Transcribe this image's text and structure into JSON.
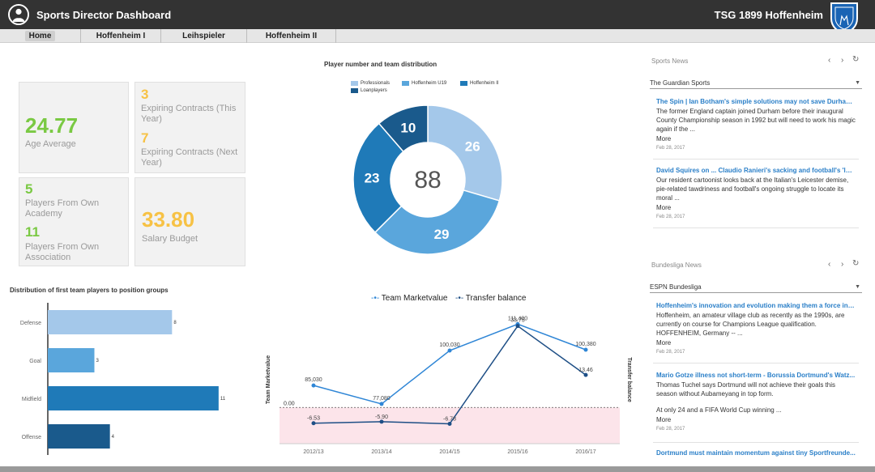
{
  "header": {
    "title": "Sports Director Dashboard",
    "club": "TSG 1899 Hoffenheim"
  },
  "tabs": [
    {
      "label": "Home",
      "active": true
    },
    {
      "label": "Hoffenheim I",
      "active": false
    },
    {
      "label": "Leihspieler",
      "active": false
    },
    {
      "label": "Hoffenheim II",
      "active": false
    }
  ],
  "kpis": {
    "age_average": {
      "value": "24.77",
      "label": "Age Average"
    },
    "expiring_this_year": {
      "value": "3",
      "label": "Expiring Contracts (This Year)"
    },
    "expiring_next_year": {
      "value": "7",
      "label": "Expiring Contracts (Next Year)"
    },
    "own_academy": {
      "value": "5",
      "label": "Players From Own Academy"
    },
    "own_association": {
      "value": "11",
      "label": "Players From Own Association"
    },
    "salary_budget": {
      "value": "33.80",
      "label": "Salary Budget"
    }
  },
  "colors": {
    "green": "#7ac943",
    "yellow": "#f7c245",
    "professionals": "#a4c8ea",
    "hoffenheim_u19": "#5aa6dc",
    "hoffenheim_ii": "#1f7ab8",
    "loanplayers": "#1a5a8c",
    "line_marketvalue": "#2f86d6",
    "line_transfer": "#1e4f86"
  },
  "chart_data": [
    {
      "type": "pie",
      "title": "Player number and team distribution",
      "center_label": "88",
      "categories": [
        "Professionals",
        "Hoffenheim U19",
        "Hoffenheim II",
        "Loanplayers"
      ],
      "values": [
        26,
        29,
        23,
        10
      ],
      "legend": "top"
    },
    {
      "type": "bar",
      "title": "Distribution of first team players to position groups",
      "categories": [
        "Defense",
        "Goal",
        "Midfield",
        "Offense"
      ],
      "values": [
        8,
        3,
        11,
        4
      ],
      "orientation": "horizontal",
      "xlim": [
        0,
        12
      ]
    },
    {
      "type": "line",
      "categories": [
        "2012/13",
        "2013/14",
        "2014/15",
        "2015/16",
        "2016/17"
      ],
      "ylabel_left": "Team Marketvalue",
      "ylabel_right": "Transfer balance",
      "reference_label": "0.00",
      "legend": "top",
      "series": [
        {
          "name": "Team Marketvalue",
          "values": [
            85030,
            77080,
            100030,
            111400,
            100380
          ],
          "labels": [
            "85,030",
            "77,080",
            "100,030",
            "111,400",
            "100,380"
          ],
          "axis": "left"
        },
        {
          "name": "Transfer balance",
          "values": [
            -6.53,
            -5.9,
            -6.78,
            33.75,
            13.46
          ],
          "labels": [
            "-6.53",
            "-5.90",
            "-6.78",
            "33.75",
            "13.46"
          ],
          "axis": "right"
        }
      ],
      "ylim_left": [
        60000,
        115000
      ],
      "ylim_right": [
        -15,
        38
      ]
    }
  ],
  "sports_news": {
    "heading": "Sports News",
    "source": "The Guardian Sports",
    "items": [
      {
        "title": "The Spin | Ian Botham's simple solutions may not save Durham b...",
        "body": "The former England captain joined Durham before their inaugural County Championship season in 1992 but will need to work his magic again if the ...",
        "more": "More",
        "date": "Feb 28, 2017"
      },
      {
        "title": "David Squires on ... Claudio Ranieri's sacking and football's 'lost...",
        "body": "Our resident cartoonist looks back at the Italian's Leicester demise, pie-related tawdriness and football's ongoing struggle to locate its moral ...",
        "more": "More",
        "date": "Feb 28, 2017"
      }
    ]
  },
  "bundesliga_news": {
    "heading": "Bundesliga News",
    "source": "ESPN Bundesliga",
    "items": [
      {
        "title": "Hoffenheim's innovation and evolution making them a force in t...",
        "body": "Hoffenheim, an amateur village club as recently as the 1990s, are currently on course for Champions League qualification. HOFFENHEIM, Germany -- ...",
        "more": "More",
        "date": "Feb 28, 2017"
      },
      {
        "title": "Mario Gotze illness not short-term - Borussia Dortmund's Watz...",
        "body": "Thomas Tuchel says Dortmund will not achieve their goals this season without Aubameyang in top form.",
        "body2": "At only 24 and a FIFA World Cup winning ...",
        "more": "More",
        "date": "Feb 28, 2017"
      },
      {
        "title": "Dortmund must maintain momentum against tiny Sportfreunde..."
      }
    ]
  },
  "icons": {
    "prev": "‹",
    "next": "›",
    "refresh": "↻",
    "caret": "▼"
  }
}
